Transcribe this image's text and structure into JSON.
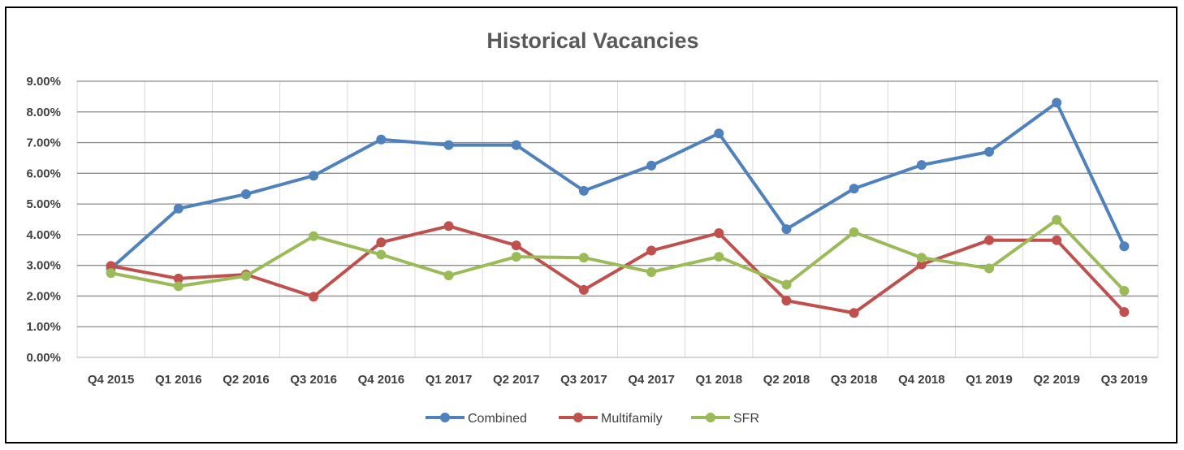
{
  "chart_data": {
    "type": "line",
    "title": "Historical Vacancies",
    "categories": [
      "Q4 2015",
      "Q1 2016",
      "Q2 2016",
      "Q3 2016",
      "Q4 2016",
      "Q1 2017",
      "Q2 2017",
      "Q3 2017",
      "Q4 2017",
      "Q1 2018",
      "Q2 2018",
      "Q3 2018",
      "Q4 2018",
      "Q1 2019",
      "Q2 2019",
      "Q3 2019"
    ],
    "y_ticks": [
      "0.00%",
      "1.00%",
      "2.00%",
      "3.00%",
      "4.00%",
      "5.00%",
      "6.00%",
      "7.00%",
      "8.00%",
      "9.00%"
    ],
    "ylim": [
      0,
      9
    ],
    "y_unit": "%",
    "grid": true,
    "legend_position": "bottom",
    "series": [
      {
        "name": "Combined",
        "color": "#4F81BD",
        "values": [
          2.9,
          4.85,
          5.32,
          5.92,
          7.1,
          6.92,
          6.92,
          5.43,
          6.25,
          7.3,
          4.18,
          5.5,
          6.27,
          6.7,
          8.3,
          3.62
        ]
      },
      {
        "name": "Multifamily",
        "color": "#C0504D",
        "values": [
          2.98,
          2.57,
          2.7,
          1.98,
          3.75,
          4.28,
          3.65,
          2.2,
          3.48,
          4.05,
          1.85,
          1.45,
          3.03,
          3.82,
          3.82,
          1.48
        ]
      },
      {
        "name": "SFR",
        "color": "#9BBB59",
        "values": [
          2.75,
          2.32,
          2.65,
          3.95,
          3.35,
          2.67,
          3.28,
          3.25,
          2.78,
          3.28,
          2.37,
          4.08,
          3.25,
          2.9,
          4.48,
          2.17
        ]
      }
    ]
  }
}
